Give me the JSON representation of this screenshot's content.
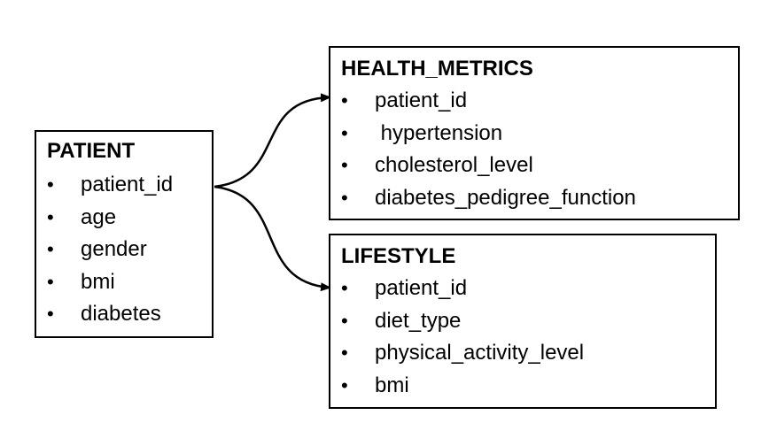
{
  "diagram": {
    "entities": {
      "patient": {
        "title": "PATIENT",
        "fields": [
          "patient_id",
          "age",
          "gender",
          "bmi",
          "diabetes"
        ]
      },
      "health_metrics": {
        "title": "HEALTH_METRICS",
        "fields": [
          "patient_id",
          " hypertension",
          "cholesterol_level",
          "diabetes_pedigree_function"
        ]
      },
      "lifestyle": {
        "title": "LIFESTYLE",
        "fields": [
          "patient_id",
          "diet_type",
          "physical_activity_level",
          "bmi"
        ]
      }
    },
    "bullet": "•",
    "relationships": [
      {
        "from": "patient.patient_id",
        "to": "health_metrics.patient_id"
      },
      {
        "from": "patient.patient_id",
        "to": "lifestyle.patient_id"
      }
    ]
  }
}
